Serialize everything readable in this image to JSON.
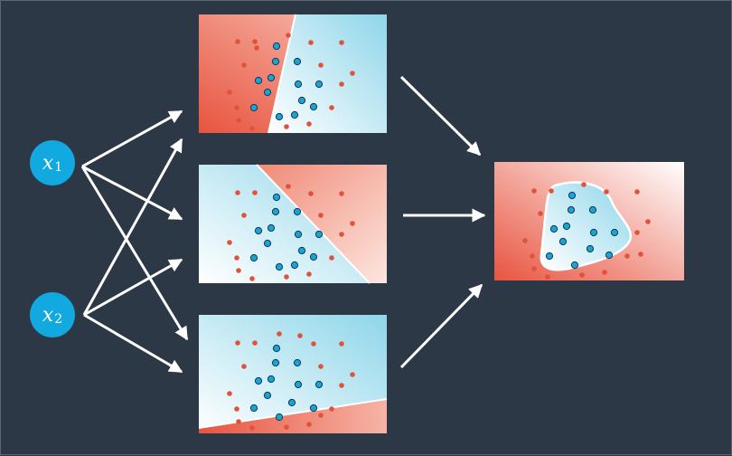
{
  "inputs": [
    {
      "var": "x",
      "sub": "1"
    },
    {
      "var": "x",
      "sub": "2"
    }
  ],
  "colors": {
    "background": "#2c3845",
    "red_region": "#ea5a44",
    "blue_region": "#8fd6ea",
    "red_dot": "#e0533a",
    "blue_dot": "#19a3d8",
    "arrow": "#ffffff",
    "input_node": "#12a8e0"
  }
}
